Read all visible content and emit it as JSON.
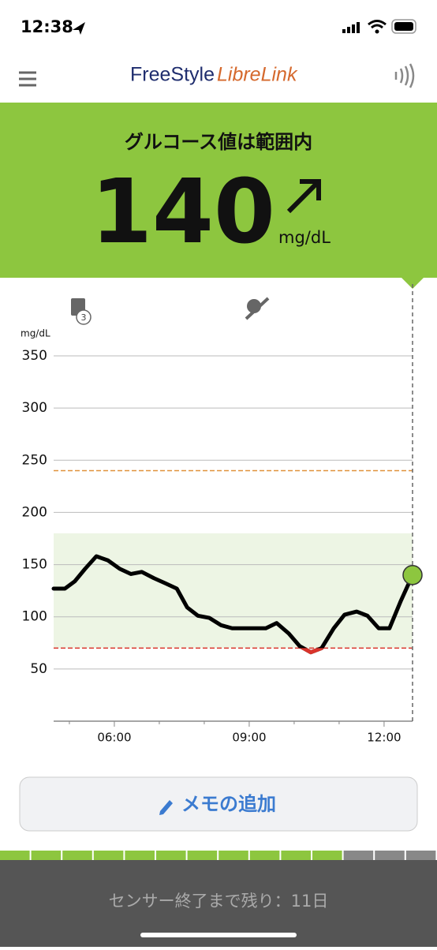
{
  "status_bar": {
    "time": "12:38"
  },
  "header": {
    "brand": "FreeStyle",
    "brand_accent": "LibreLink"
  },
  "reading": {
    "status": "グルコース値は範囲内",
    "value": 140,
    "unit": "mg/dL"
  },
  "chart_data": {
    "type": "line",
    "y_label": "mg/dL",
    "x": [
      4.65,
      4.9,
      5.12,
      5.35,
      5.6,
      5.86,
      6.12,
      6.37,
      6.61,
      6.88,
      7.14,
      7.39,
      7.62,
      7.86,
      8.11,
      8.37,
      8.62,
      8.88,
      9.12,
      9.37,
      9.61,
      9.88,
      10.12,
      10.37,
      10.61,
      10.88,
      11.12,
      11.39,
      11.63,
      11.88,
      12.12,
      12.37,
      12.633
    ],
    "series": [
      {
        "name": "グルコース",
        "color": "#000000",
        "low_color": "#d9342b",
        "values": [
          127,
          127,
          134,
          146,
          158,
          154,
          146,
          141,
          143,
          137,
          132,
          127,
          109,
          101,
          99,
          92,
          89,
          89,
          89,
          89,
          94,
          84,
          72,
          66,
          70,
          89,
          102,
          105,
          101,
          89,
          89,
          115,
          140
        ]
      }
    ],
    "marker_color": "#8dc63f",
    "xlim": [
      4.65,
      12.633
    ],
    "xticks": [
      {
        "value": 6,
        "label": "06:00"
      },
      {
        "value": 9,
        "label": "09:00"
      },
      {
        "value": 12,
        "label": "12:00"
      }
    ],
    "x_minor_ticks": [
      5,
      7,
      8,
      10,
      11
    ],
    "ylim": [
      0,
      350
    ],
    "yticks": [
      50,
      100,
      150,
      200,
      250,
      300,
      350
    ],
    "grid": true,
    "target_range": [
      70,
      180
    ],
    "target_color": "#edf5e4",
    "low_line": {
      "value": 70,
      "color": "#d9342b"
    },
    "high_line": {
      "value": 240,
      "color": "#e0913a"
    }
  },
  "memo_button": "メモの追加",
  "footer": {
    "sensor_text": "センサー終了まで残り：11日"
  }
}
